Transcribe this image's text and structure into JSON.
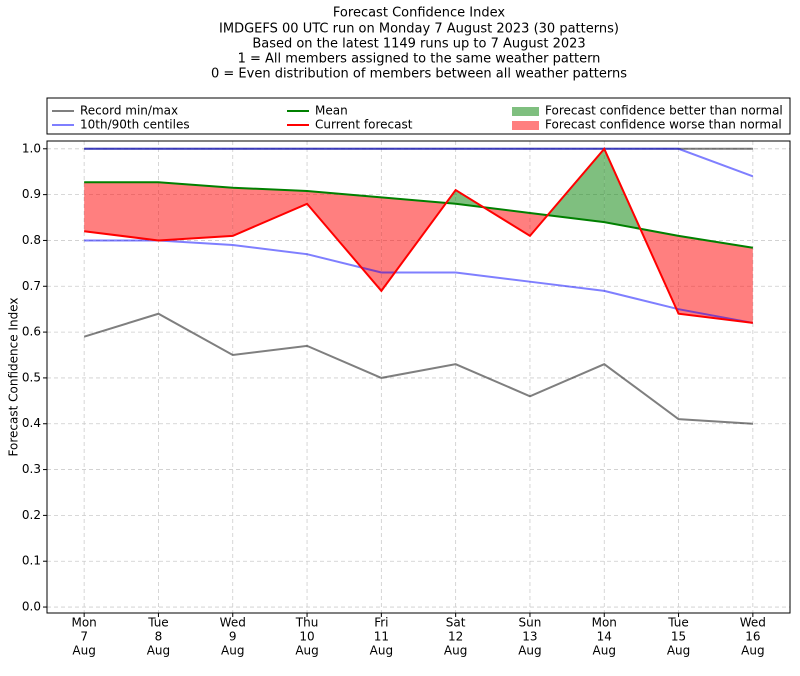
{
  "chart_data": {
    "type": "line",
    "title": "Forecast Confidence Index",
    "subtitle": [
      "IMDGEFS 00 UTC run on Monday 7 August 2023 (30 patterns)",
      "Based on the latest 1149 runs up to 7 August 2023",
      "1 = All members assigned to the same weather pattern",
      "0 = Even distribution of members between all weather patterns"
    ],
    "y_label": "Forecast Confidence Index",
    "categories": [
      [
        "Mon",
        "7",
        "Aug"
      ],
      [
        "Tue",
        "8",
        "Aug"
      ],
      [
        "Wed",
        "9",
        "Aug"
      ],
      [
        "Thu",
        "10",
        "Aug"
      ],
      [
        "Fri",
        "11",
        "Aug"
      ],
      [
        "Sat",
        "12",
        "Aug"
      ],
      [
        "Sun",
        "13",
        "Aug"
      ],
      [
        "Mon",
        "14",
        "Aug"
      ],
      [
        "Tue",
        "15",
        "Aug"
      ],
      [
        "Wed",
        "16",
        "Aug"
      ]
    ],
    "series": [
      {
        "name": "Record min/max",
        "color": "#000000",
        "alpha": 0.5,
        "lower": [
          0.59,
          0.64,
          0.55,
          0.57,
          0.5,
          0.53,
          0.46,
          0.53,
          0.41,
          0.4
        ],
        "upper": [
          1.0,
          1.0,
          1.0,
          1.0,
          1.0,
          1.0,
          1.0,
          1.0,
          1.0,
          1.0
        ]
      },
      {
        "name": "10th/90th centiles",
        "color": "#0000ff",
        "alpha": 0.5,
        "lower": [
          0.8,
          0.8,
          0.79,
          0.77,
          0.73,
          0.73,
          0.71,
          0.69,
          0.65,
          0.62
        ],
        "upper": [
          1.0,
          1.0,
          1.0,
          1.0,
          1.0,
          1.0,
          1.0,
          1.0,
          1.0,
          0.94
        ]
      },
      {
        "name": "Mean",
        "color": "#008000",
        "alpha": 1,
        "values": [
          0.927,
          0.927,
          0.915,
          0.908,
          0.894,
          0.88,
          0.86,
          0.84,
          0.81,
          0.784
        ]
      },
      {
        "name": "Current forecast",
        "color": "#ff0000",
        "alpha": 1,
        "values": [
          0.82,
          0.8,
          0.81,
          0.88,
          0.69,
          0.91,
          0.81,
          1.0,
          0.64,
          0.62
        ]
      }
    ],
    "fills": [
      {
        "name": "Forecast confidence better than normal",
        "color": "#008000",
        "alpha": 0.5
      },
      {
        "name": "Forecast confidence worse than normal",
        "color": "#ff0000",
        "alpha": 0.5
      }
    ],
    "ylim": [
      -0.013,
      1.017
    ],
    "yticks": [
      {
        "value": 0,
        "label": "0.0"
      },
      0.1,
      0.2,
      0.3,
      0.4,
      0.5,
      0.6,
      0.7,
      0.8,
      0.9,
      {
        "value": 1,
        "label": "1.0"
      }
    ],
    "grid": true
  }
}
